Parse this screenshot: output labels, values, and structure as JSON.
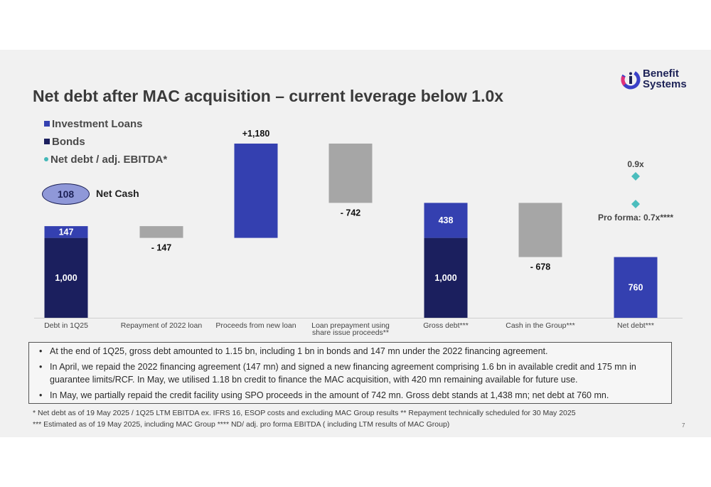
{
  "slide": {
    "title": "Net debt after MAC acquisition – current leverage below 1.0x",
    "logo": {
      "line1": "Benefit",
      "line2": "Systems"
    },
    "page_number": "7"
  },
  "legend": [
    {
      "label": "Investment Loans",
      "color": "#3440b0",
      "shape": "square"
    },
    {
      "label": "Bonds",
      "color": "#1b1f5e",
      "shape": "square"
    },
    {
      "label": "Net debt / adj. EBITDA*",
      "color": "#43b8b8",
      "shape": "dot"
    }
  ],
  "net_cash": {
    "value": "108",
    "label": "Net Cash"
  },
  "colors": {
    "investment_loans": "#3440b0",
    "bonds": "#1b1f5e",
    "decrease": "#a6a6a6",
    "ratio_marker": "#4bbdbd"
  },
  "chart_data": {
    "type": "bar",
    "subtype": "waterfall",
    "categories": [
      "Debt in 1Q25",
      "Repayment of 2022 loan",
      "Proceeds from new loan",
      "Loan prepayment using share issue proceeds**",
      "Gross debt***",
      "Cash in the Group***",
      "Net debt***"
    ],
    "steps": [
      {
        "category": "Debt in 1Q25",
        "kind": "total",
        "segments": [
          {
            "series": "Bonds",
            "value": 1000,
            "label": "1,000"
          },
          {
            "series": "Investment Loans",
            "value": 147,
            "label": "147"
          }
        ]
      },
      {
        "category": "Repayment of 2022 loan",
        "kind": "delta",
        "value": -147,
        "label": "- 147"
      },
      {
        "category": "Proceeds from new loan",
        "kind": "delta",
        "value": 1180,
        "label": "+1,180"
      },
      {
        "category": "Loan prepayment using share issue proceeds**",
        "kind": "delta",
        "value": -742,
        "label": "- 742"
      },
      {
        "category": "Gross debt***",
        "kind": "total",
        "segments": [
          {
            "series": "Bonds",
            "value": 1000,
            "label": "1,000"
          },
          {
            "series": "Investment Loans",
            "value": 438,
            "label": "438"
          }
        ]
      },
      {
        "category": "Cash in the Group***",
        "kind": "delta",
        "value": -678,
        "label": "- 678"
      },
      {
        "category": "Net debt***",
        "kind": "total",
        "segments": [
          {
            "series": "Investment Loans",
            "value": 760,
            "label": "760"
          }
        ]
      }
    ],
    "ratio_markers": [
      {
        "category": "Net debt***",
        "value": 0.9,
        "label": "0.9x"
      },
      {
        "category": "Net debt***",
        "value": 0.7,
        "label": "Pro forma: 0.7x****"
      }
    ],
    "series": [
      {
        "name": "Investment Loans"
      },
      {
        "name": "Bonds"
      },
      {
        "name": "Net debt / adj. EBITDA*"
      }
    ],
    "ylim": [
      0,
      2000
    ],
    "grid": false,
    "legend_position": "top-left"
  },
  "bullets": [
    "At the end of 1Q25, gross debt amounted to 1.15 bn, including 1 bn in bonds and 147 mn under the 2022 financing agreement.",
    "In April, we repaid the 2022 financing agreement (147 mn) and signed a new financing agreement comprising 1.6 bn in available credit and 175 mn in guarantee limits/RCF. In May, we utilised 1.18 bn credit to finance the MAC acquisition, with 420 mn remaining available for future use.",
    "In May, we partially repaid the credit facility using SPO proceeds in the amount of 742 mn. Gross debt stands at 1,438 mn; net debt at 760 mn."
  ],
  "footnotes": [
    "* Net debt as of 19 May 2025 / 1Q25 LTM EBITDA ex. IFRS 16, ESOP costs and excluding MAC Group results ** Repayment technically scheduled for 30 May 2025",
    "*** Estimated as of 19 May 2025, including MAC Group **** ND/ adj. pro forma EBITDA ( including LTM results of MAC Group)"
  ]
}
